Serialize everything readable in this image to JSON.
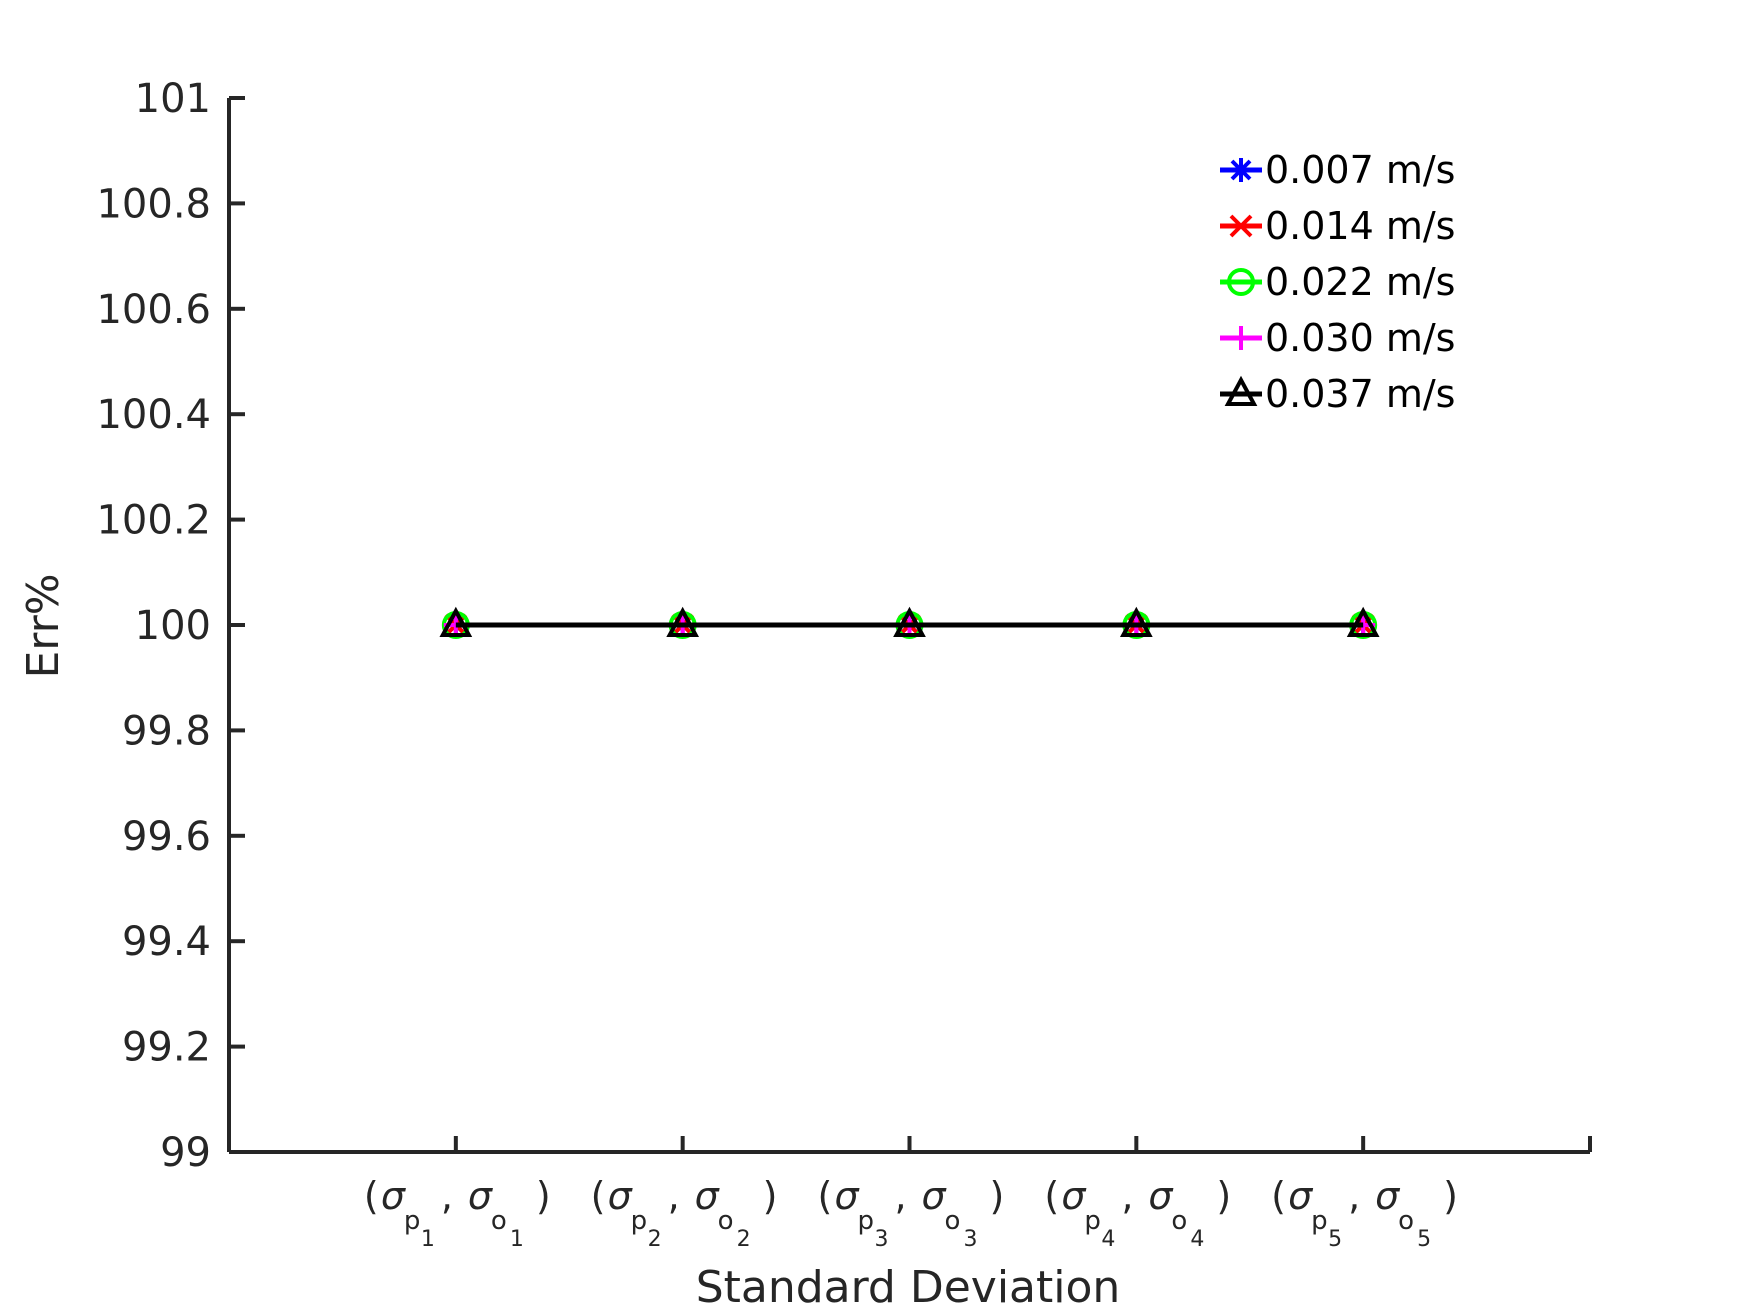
{
  "chart_data": {
    "type": "line",
    "title": "",
    "xlabel": "Standard Deviation",
    "ylabel": "Err%",
    "ylim": [
      99,
      101
    ],
    "yticks": [
      "99",
      "99.2",
      "99.4",
      "99.6",
      "99.8",
      "100",
      "100.2",
      "100.4",
      "100.6",
      "100.8",
      "101"
    ],
    "xlim": [
      0,
      6
    ],
    "categories": [
      {
        "p": "p",
        "ps": "1",
        "o": "o",
        "os": "1"
      },
      {
        "p": "p",
        "ps": "2",
        "o": "o",
        "os": "2"
      },
      {
        "p": "p",
        "ps": "3",
        "o": "o",
        "os": "3"
      },
      {
        "p": "p",
        "ps": "4",
        "o": "o",
        "os": "4"
      },
      {
        "p": "p",
        "ps": "5",
        "o": "o",
        "os": "5"
      }
    ],
    "category_symbol": "σ",
    "series": [
      {
        "name": "0.007 m/s",
        "color": "#0000ff",
        "marker": "asterisk",
        "values": [
          100,
          100,
          100,
          100,
          100
        ]
      },
      {
        "name": "0.014 m/s",
        "color": "#ff0000",
        "marker": "x",
        "values": [
          100,
          100,
          100,
          100,
          100
        ]
      },
      {
        "name": "0.022 m/s",
        "color": "#00ff00",
        "marker": "circle",
        "values": [
          100,
          100,
          100,
          100,
          100
        ]
      },
      {
        "name": "0.030 m/s",
        "color": "#ff00ff",
        "marker": "plus",
        "values": [
          100,
          100,
          100,
          100,
          100
        ]
      },
      {
        "name": "0.037 m/s",
        "color": "#000000",
        "marker": "triangle",
        "values": [
          100,
          100,
          100,
          100,
          100
        ]
      }
    ],
    "legend_position": "top-right",
    "grid": false
  }
}
